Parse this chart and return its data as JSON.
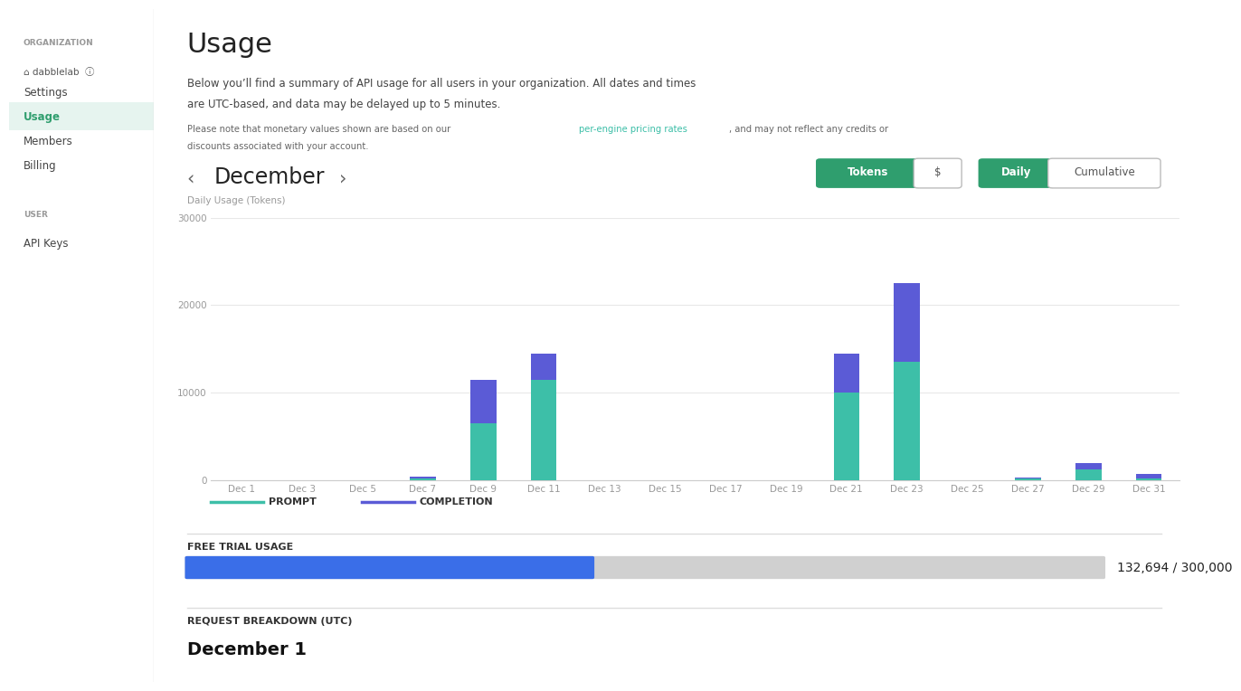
{
  "title": "Usage",
  "subtitle1": "Below you’ll find a summary of API usage for all users in your organization. All dates and times",
  "subtitle2": "are UTC-based, and data may be delayed up to 5 minutes.",
  "note1": "Please note that monetary values shown are based on our ",
  "note_link": "per-engine pricing rates",
  "note2": ", and may not reflect any credits or",
  "note3": "discounts associated with your account.",
  "month": "December",
  "chart_ylabel": "Daily Usage (Tokens)",
  "button_tokens": "Tokens",
  "button_dollar": "$",
  "button_daily": "Daily",
  "button_cumulative": "Cumulative",
  "legend_prompt": "PROMPT",
  "legend_completion": "COMPLETION",
  "x_labels": [
    "Dec 1",
    "Dec 3",
    "Dec 5",
    "Dec 7",
    "Dec 9",
    "Dec 11",
    "Dec 13",
    "Dec 15",
    "Dec 17",
    "Dec 19",
    "Dec 21",
    "Dec 23",
    "Dec 25",
    "Dec 27",
    "Dec 29",
    "Dec 31"
  ],
  "x_positions": [
    1,
    3,
    5,
    7,
    9,
    11,
    13,
    15,
    17,
    19,
    21,
    23,
    25,
    27,
    29,
    31
  ],
  "prompt_values": [
    0,
    0,
    0,
    200,
    6500,
    11500,
    0,
    0,
    0,
    0,
    10000,
    13500,
    0,
    200,
    1200,
    200
  ],
  "completion_values": [
    0,
    0,
    0,
    200,
    5000,
    3000,
    0,
    0,
    0,
    0,
    4500,
    9000,
    0,
    100,
    700,
    500
  ],
  "ylim": [
    0,
    30000
  ],
  "yticks": [
    0,
    10000,
    20000,
    30000
  ],
  "color_prompt": "#3dbfa8",
  "color_completion": "#5b5bd6",
  "color_bg": "#ffffff",
  "sidebar_bg": "#f5f5f5",
  "progress_value": 132694,
  "progress_max": 300000,
  "progress_label": "132,694 / 300,000",
  "free_trial_label": "FREE TRIAL USAGE",
  "request_label": "REQUEST BREAKDOWN (UTC)",
  "december1_label": "December 1",
  "active_nav": "Usage",
  "grid_color": "#e8e8e8",
  "axis_color": "#cccccc",
  "link_color": "#3dbfa8",
  "button_green_bg": "#2f9e6e",
  "org_label": "ORGANIZATION",
  "user_label": "USER",
  "dabblelab_label": "⌂ dabblelab  ⓘ",
  "sidebar_nav": [
    "Settings",
    "Usage",
    "Members",
    "Billing"
  ],
  "sidebar_nav2": [
    "API Keys"
  ]
}
